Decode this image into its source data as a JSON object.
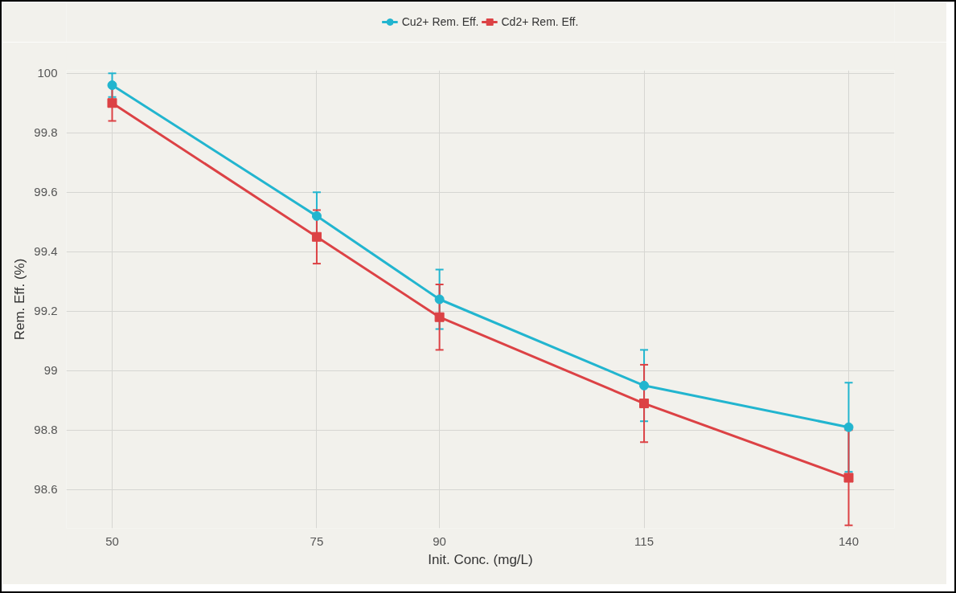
{
  "chart_data": {
    "type": "line",
    "xlabel": "Init. Conc. (mg/L)",
    "ylabel": "Rem. Eff. (%)",
    "x": [
      50,
      75,
      90,
      115,
      140
    ],
    "series": [
      {
        "name": "Cu2+ Rem. Eff.",
        "color": "#22b5cf",
        "marker": "circle",
        "values": [
          99.96,
          99.52,
          99.24,
          98.95,
          98.81
        ],
        "errors": [
          0.04,
          0.08,
          0.1,
          0.12,
          0.15
        ]
      },
      {
        "name": "Cd2+ Rem. Eff.",
        "color": "#dc4245",
        "marker": "square",
        "values": [
          99.9,
          99.45,
          99.18,
          98.89,
          98.64
        ],
        "errors": [
          0.06,
          0.09,
          0.11,
          0.13,
          0.16
        ]
      }
    ],
    "xlim": [
      44.4,
      145.6
    ],
    "ylim": [
      98.47,
      100.01
    ],
    "xticks": [
      50,
      75,
      90,
      115,
      140
    ],
    "yticks": [
      {
        "value": 98.6,
        "label": "98.6"
      },
      {
        "value": 98.8,
        "label": "98.8"
      },
      {
        "value": 99,
        "label": "99"
      },
      {
        "value": 99.2,
        "label": "99.2"
      },
      {
        "value": 99.4,
        "label": "99.4"
      },
      {
        "value": 99.6,
        "label": "99.6"
      },
      {
        "value": 99.8,
        "label": "99.8"
      },
      {
        "value": 100,
        "label": "100"
      }
    ],
    "grid": true,
    "legend": "top",
    "line_style": "solid"
  }
}
